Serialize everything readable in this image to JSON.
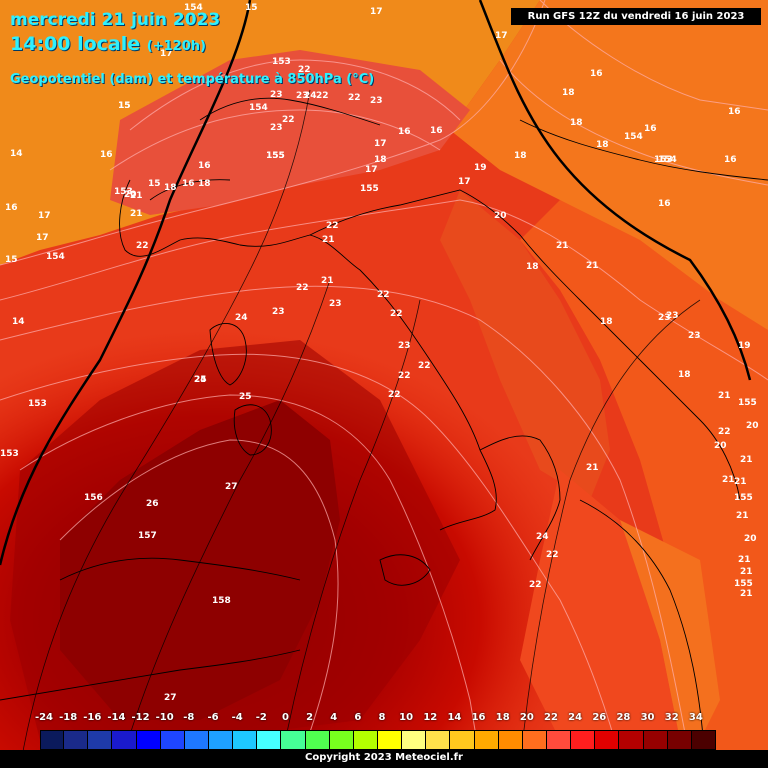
{
  "header": {
    "date_line": "mercredi 21 juin 2023",
    "time_line": "14:00 locale",
    "offset": "(+120h)",
    "field_line": "Geopotentiel (dam) et température à 850hPa (°C)",
    "run_info": "Run GFS 12Z du vendredi 16 juin 2023"
  },
  "footer": {
    "copyright": "Copyright 2023 Meteociel.fr"
  },
  "legend": {
    "ticks": [
      "-24",
      "-18",
      "-16",
      "-14",
      "-12",
      "-10",
      "-8",
      "-6",
      "-4",
      "-2",
      "0",
      "2",
      "4",
      "6",
      "8",
      "10",
      "12",
      "14",
      "16",
      "18",
      "20",
      "22",
      "24",
      "26",
      "28",
      "30",
      "32",
      "34"
    ],
    "extra_tick": "18",
    "colors": [
      "#0b1a5c",
      "#1a2a8a",
      "#1e3aa8",
      "#1a1acc",
      "#0000ff",
      "#1e46ff",
      "#1e78ff",
      "#1ea0ff",
      "#1ec8ff",
      "#46ffff",
      "#46ff96",
      "#50ff50",
      "#78ff1e",
      "#b4ff00",
      "#ffff00",
      "#ffff80",
      "#ffe14b",
      "#ffc81e",
      "#ffaa00",
      "#ff8c00",
      "#ff6e1e",
      "#ff4b3c",
      "#ff1e1e",
      "#e10000",
      "#b40000",
      "#960000",
      "#780000",
      "#4b0000"
    ]
  },
  "map_labels": {
    "temperature": [
      "15",
      "17",
      "17",
      "16",
      "14",
      "16",
      "16",
      "17",
      "18",
      "16",
      "15",
      "15",
      "18",
      "17",
      "16",
      "16",
      "14",
      "16",
      "18",
      "18",
      "16",
      "16",
      "15",
      "18",
      "16",
      "15",
      "17",
      "17",
      "18",
      "16",
      "17",
      "18",
      "19",
      "21",
      "17",
      "21",
      "20",
      "22",
      "21",
      "22",
      "21",
      "22",
      "21",
      "20",
      "21",
      "18",
      "21",
      "18",
      "22",
      "23",
      "24",
      "23",
      "22",
      "23",
      "22",
      "22",
      "23",
      "23",
      "22",
      "23",
      "22",
      "21",
      "23",
      "24",
      "25",
      "25",
      "19",
      "18",
      "20",
      "21",
      "21",
      "20",
      "21",
      "21",
      "21",
      "20",
      "21",
      "27",
      "26",
      "24",
      "22",
      "22",
      "27",
      "22",
      "23",
      "22",
      "23",
      "24",
      "22",
      "23",
      "22",
      "21"
    ],
    "geopotential": [
      "154",
      "154",
      "153",
      "153",
      "154",
      "155",
      "153",
      "154",
      "154",
      "153",
      "156",
      "157",
      "158",
      "155",
      "155",
      "155",
      "155",
      "155",
      "153"
    ]
  }
}
